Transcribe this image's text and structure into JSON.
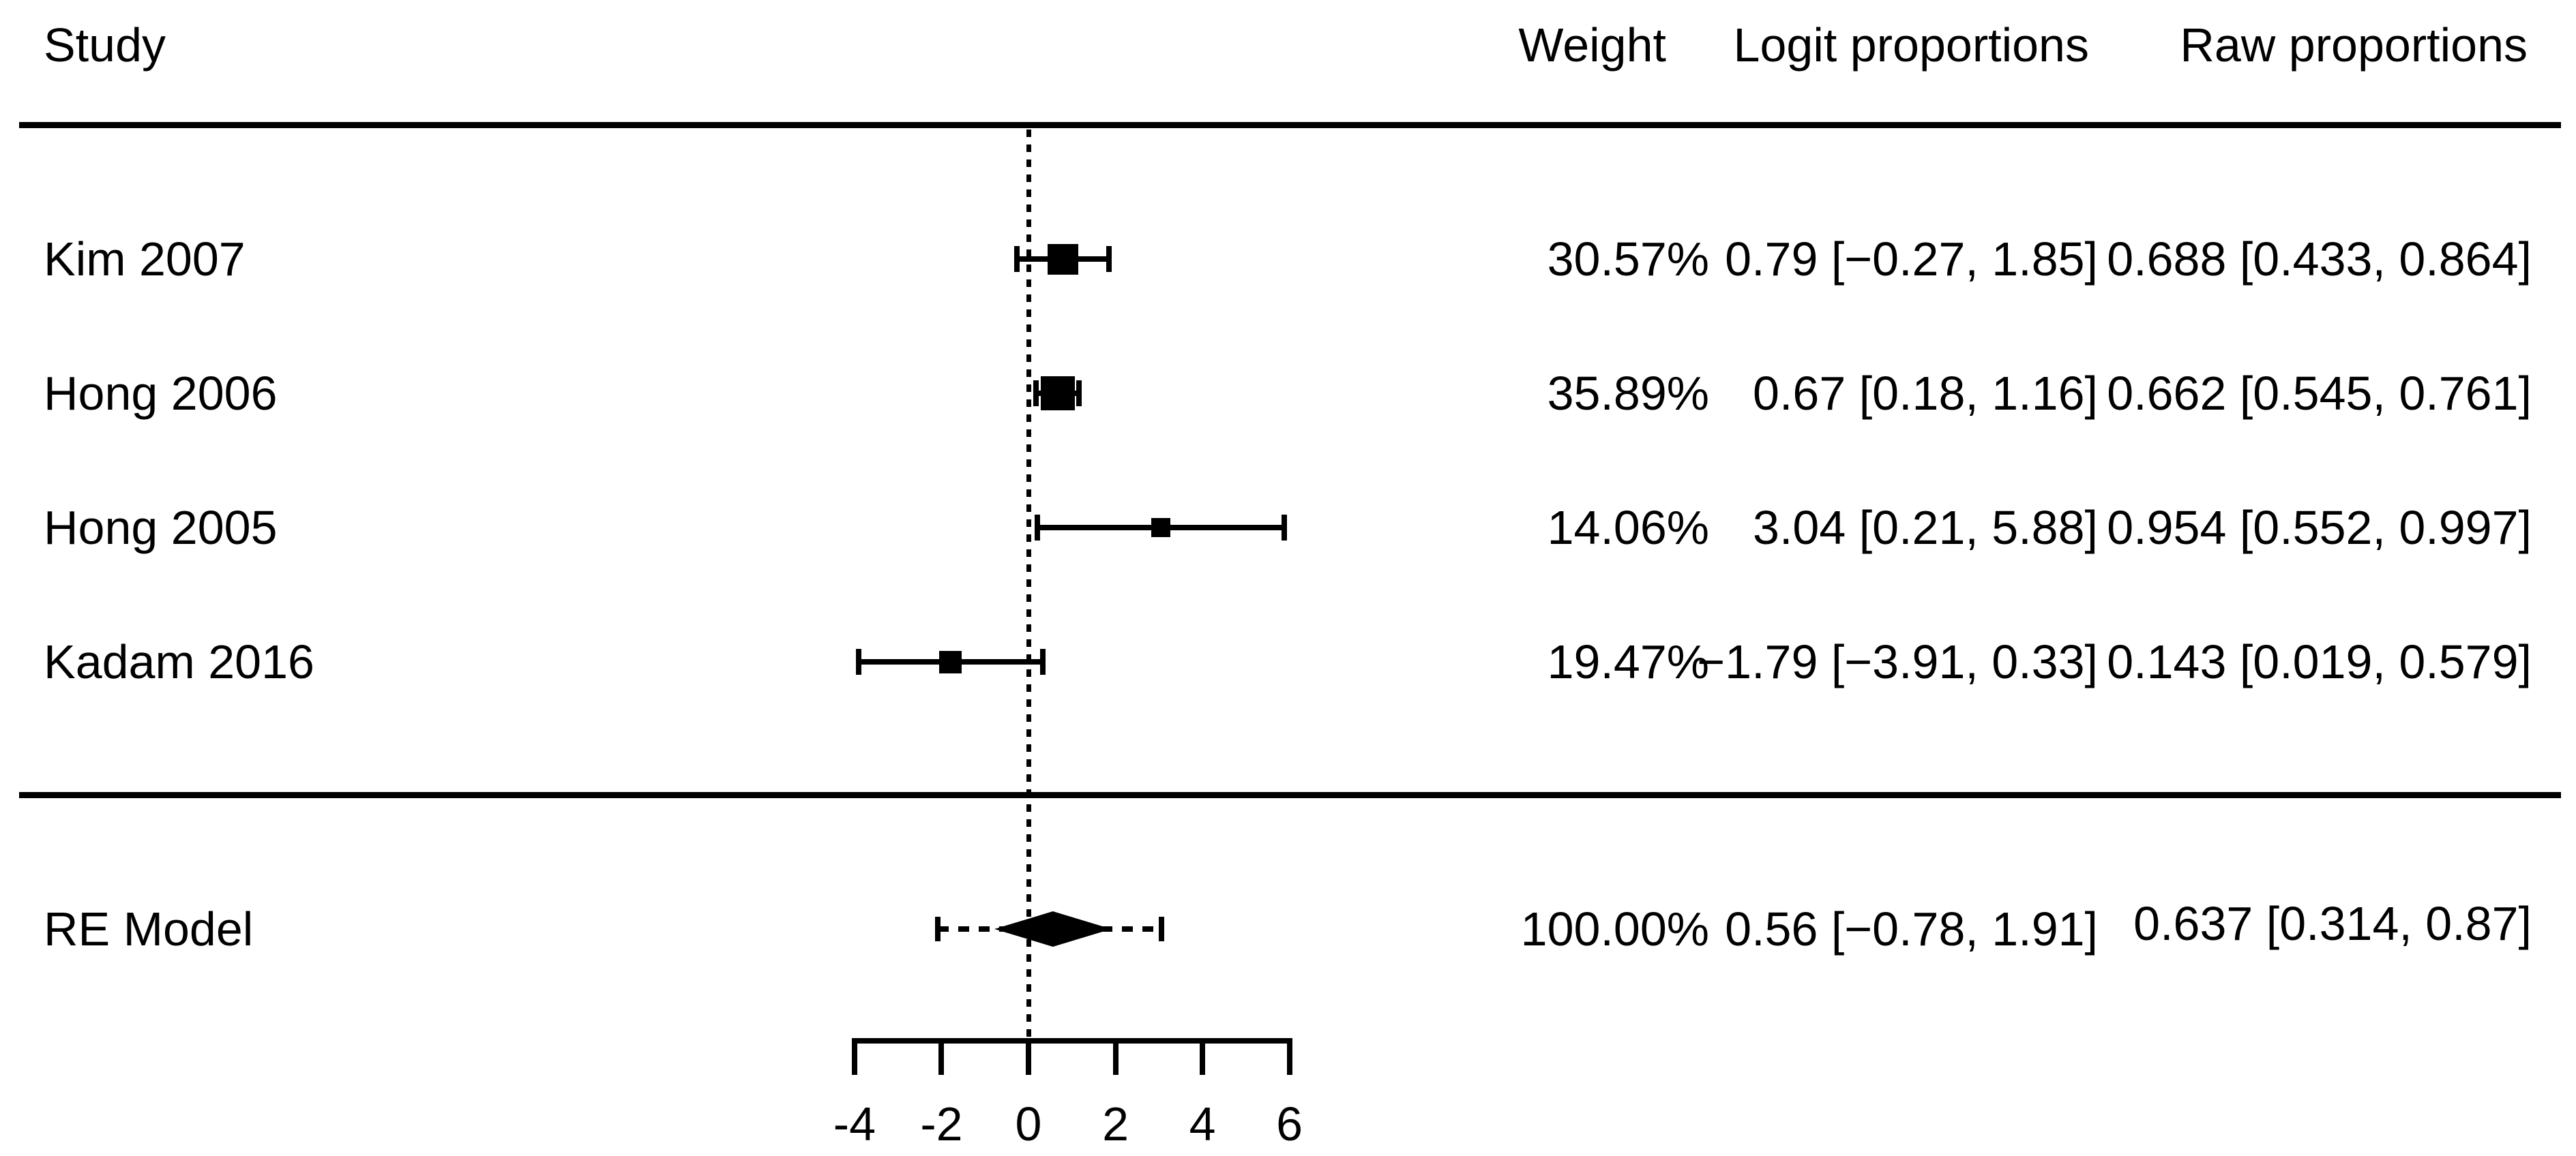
{
  "figure": {
    "background": "#ffffff",
    "ink_color": "#000000"
  },
  "header": {
    "study": "Study",
    "weight": "Weight",
    "logit": "Logit proportions",
    "raw": "Raw proportions"
  },
  "chart_data": {
    "type": "forest",
    "title": "",
    "x_axis": {
      "range": [
        -4,
        6
      ],
      "ticks": [
        -4,
        -2,
        0,
        2,
        4,
        6
      ],
      "tick_labels": [
        "-4",
        "-2",
        "0",
        "2",
        "4",
        "6"
      ],
      "zero_reference_line": 0
    },
    "studies": [
      {
        "label": "Kim 2007",
        "weight_pct": 30.57,
        "weight_label": "30.57%",
        "estimate": 0.79,
        "ci_low": -0.27,
        "ci_high": 1.85,
        "logit_label": "0.79 [−0.27, 1.85]",
        "raw_label": "0.688 [0.433, 0.864]"
      },
      {
        "label": "Hong 2006",
        "weight_pct": 35.89,
        "weight_label": "35.89%",
        "estimate": 0.67,
        "ci_low": 0.18,
        "ci_high": 1.16,
        "logit_label": "0.67 [0.18, 1.16]",
        "raw_label": "0.662 [0.545, 0.761]"
      },
      {
        "label": "Hong 2005",
        "weight_pct": 14.06,
        "weight_label": "14.06%",
        "estimate": 3.04,
        "ci_low": 0.21,
        "ci_high": 5.88,
        "logit_label": "3.04 [0.21, 5.88]",
        "raw_label": "0.954 [0.552, 0.997]"
      },
      {
        "label": "Kadam 2016",
        "weight_pct": 19.47,
        "weight_label": "19.47%",
        "estimate": -1.79,
        "ci_low": -3.91,
        "ci_high": 0.33,
        "logit_label": "−1.79 [−3.91, 0.33]",
        "raw_label": "0.143 [0.019, 0.579]"
      }
    ],
    "summary": {
      "label": "RE Model",
      "weight_pct": 100.0,
      "weight_label": "100.00%",
      "estimate": 0.56,
      "ci_low": -0.78,
      "ci_high": 1.91,
      "pred_low": -2.08,
      "pred_high": 3.06,
      "logit_label": "0.56 [−0.78, 1.91]",
      "raw_label": "0.637 [0.314, 0.87]"
    }
  }
}
